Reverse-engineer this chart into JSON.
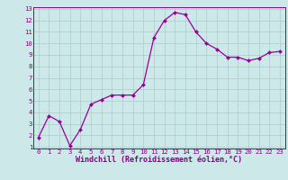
{
  "x": [
    0,
    1,
    2,
    3,
    4,
    5,
    6,
    7,
    8,
    9,
    10,
    11,
    12,
    13,
    14,
    15,
    16,
    17,
    18,
    19,
    20,
    21,
    22,
    23
  ],
  "y": [
    1.8,
    3.7,
    3.2,
    1.1,
    2.5,
    4.7,
    5.1,
    5.5,
    5.5,
    5.5,
    6.4,
    10.5,
    12.0,
    12.7,
    12.5,
    11.0,
    10.0,
    9.5,
    8.8,
    8.8,
    8.5,
    8.7,
    9.2,
    9.3
  ],
  "xlabel": "Windchill (Refroidissement éolien,°C)",
  "ylim": [
    1,
    13
  ],
  "xlim": [
    -0.5,
    23.5
  ],
  "yticks": [
    1,
    2,
    3,
    4,
    5,
    6,
    7,
    8,
    9,
    10,
    11,
    12,
    13
  ],
  "xticks": [
    0,
    1,
    2,
    3,
    4,
    5,
    6,
    7,
    8,
    9,
    10,
    11,
    12,
    13,
    14,
    15,
    16,
    17,
    18,
    19,
    20,
    21,
    22,
    23
  ],
  "line_color": "#990099",
  "marker_color": "#990099",
  "bg_color": "#cce8e8",
  "grid_color": "#aacccc",
  "border_color": "#880088",
  "xlabel_color": "#880088",
  "tick_color": "#880088",
  "font_name": "monospace",
  "xlabel_fontsize": 6.0,
  "tick_fontsize": 5.2
}
